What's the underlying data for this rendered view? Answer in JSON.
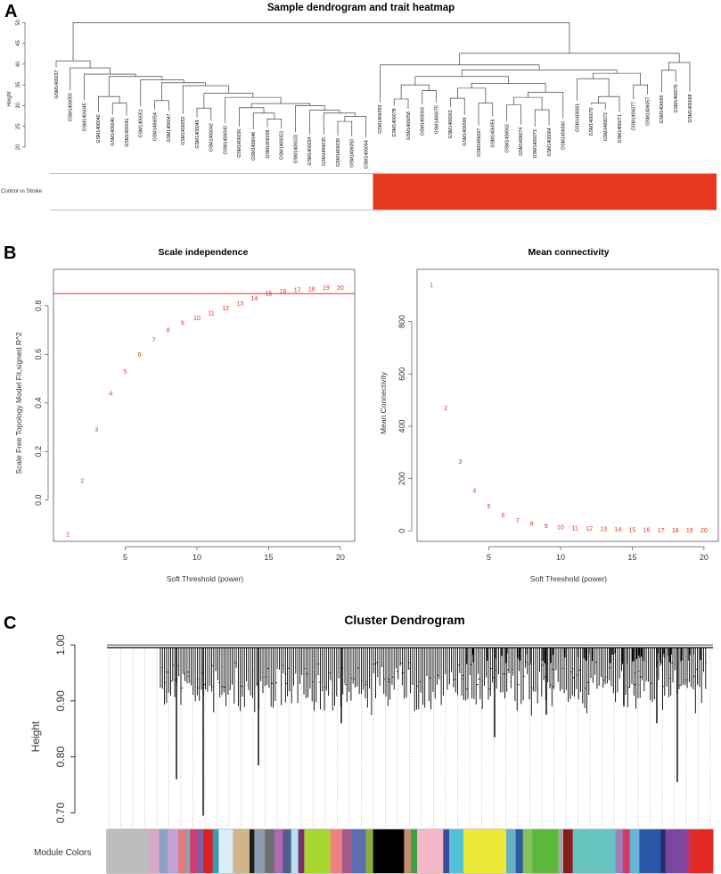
{
  "panels": {
    "a": "A",
    "b": "B",
    "c": "C"
  },
  "chart_data": [
    {
      "type": "dendrogram",
      "title": "Sample dendrogram and trait heatmap",
      "ylabel": "Height",
      "ylim": [
        20,
        52
      ],
      "yticks": [
        20,
        25,
        30,
        35,
        40,
        45,
        50
      ],
      "leaves": [
        "GSM1406037",
        "GSM1406055",
        "GSM1406045",
        "GSM1406040",
        "GSM1406046",
        "GSM1406041",
        "GSM1406051",
        "GSM1406054",
        "GSM1406047",
        "GSM1406052",
        "GSM1406049",
        "GSM1406042",
        "GSM1406043",
        "GSM1406036",
        "GSM1406048",
        "GSM1406038",
        "GSM1406053",
        "GSM1406033",
        "GSM1406034",
        "GSM1406035",
        "GSM1406039",
        "GSM1406050",
        "GSM1406044",
        "GSM1406059",
        "GSM1406078",
        "GSM1406058",
        "GSM1406066",
        "GSM1406075",
        "GSM1406063",
        "GSM1406069",
        "GSM1406067",
        "GSM1406056",
        "GSM1406062",
        "GSM1406074",
        "GSM1406073",
        "GSM1406064",
        "GSM1406060",
        "GSM1406061",
        "GSM1406070",
        "GSM1406072",
        "GSM1406071",
        "GSM1406077",
        "GSM1406057",
        "GSM1406065",
        "GSM1406076",
        "GSM1406068"
      ],
      "trait": {
        "label": "Control vs Stroke",
        "groups": [
          {
            "name": "Control",
            "count": 23,
            "color": "#ffffff"
          },
          {
            "name": "Stroke",
            "count": 23,
            "color": "#e8381e"
          }
        ]
      }
    },
    {
      "type": "scatter",
      "title": "Scale independence",
      "xlabel": "Soft Threshold (power)",
      "ylabel": "Scale Free Topology Model Fit,signed R^2",
      "xlim": [
        0,
        21
      ],
      "ylim": [
        -0.17,
        0.95
      ],
      "xticks": [
        5,
        10,
        15,
        20
      ],
      "yticks": [
        0.0,
        0.2,
        0.4,
        0.6,
        0.8
      ],
      "x": [
        1,
        2,
        3,
        4,
        5,
        6,
        7,
        8,
        9,
        10,
        11,
        12,
        13,
        14,
        15,
        16,
        17,
        18,
        19,
        20
      ],
      "y": [
        -0.14,
        0.08,
        0.29,
        0.44,
        0.53,
        0.6,
        0.66,
        0.7,
        0.73,
        0.75,
        0.77,
        0.79,
        0.81,
        0.83,
        0.85,
        0.86,
        0.865,
        0.87,
        0.875,
        0.875
      ],
      "hline": 0.85,
      "marker_color": "#e8321e"
    },
    {
      "type": "scatter",
      "title": "Mean connectivity",
      "xlabel": "Soft Threshold (power)",
      "ylabel": "Mean Connectivity",
      "xlim": [
        0,
        21
      ],
      "ylim": [
        -40,
        1000
      ],
      "xticks": [
        5,
        10,
        15,
        20
      ],
      "yticks": [
        0,
        200,
        400,
        600,
        800
      ],
      "x": [
        1,
        2,
        3,
        4,
        5,
        6,
        7,
        8,
        9,
        10,
        11,
        12,
        13,
        14,
        15,
        16,
        17,
        18,
        19,
        20
      ],
      "y": [
        940,
        470,
        265,
        155,
        95,
        60,
        40,
        28,
        20,
        15,
        12,
        10,
        8,
        6,
        5,
        4,
        3,
        3,
        2,
        2
      ],
      "marker_color": "#e8321e"
    },
    {
      "type": "dendrogram",
      "title": "Cluster Dendrogram",
      "ylabel": "Height",
      "ylim": [
        0.68,
        1.005
      ],
      "yticks": [
        0.7,
        0.8,
        0.9,
        1.0
      ],
      "ytick_labels": [
        "0.70",
        "0.80",
        "0.90",
        "1.00"
      ],
      "color_bar_label": "Module Colors",
      "module_colors": [
        {
          "color": "#bdbdbd",
          "weight": 36
        },
        {
          "color": "#d7a9c7",
          "weight": 8
        },
        {
          "color": "#8ca0c8",
          "weight": 7
        },
        {
          "color": "#c4a2d6",
          "weight": 9
        },
        {
          "color": "#e07a7a",
          "weight": 6
        },
        {
          "color": "#9aa0a4",
          "weight": 4
        },
        {
          "color": "#d03b7a",
          "weight": 6
        },
        {
          "color": "#7b5ea6",
          "weight": 5
        },
        {
          "color": "#da2020",
          "weight": 8
        },
        {
          "color": "#3a9ab3",
          "weight": 5
        },
        {
          "color": "#dbeef6",
          "weight": 12
        },
        {
          "color": "#d2b48c",
          "weight": 14
        },
        {
          "color": "#1c1c1c",
          "weight": 4
        },
        {
          "color": "#8b9bb0",
          "weight": 9
        },
        {
          "color": "#6e6e6e",
          "weight": 8
        },
        {
          "color": "#b06ab4",
          "weight": 7
        },
        {
          "color": "#505f8a",
          "weight": 7
        },
        {
          "color": "#b6e0f0",
          "weight": 6
        },
        {
          "color": "#7b2f6b",
          "weight": 5
        },
        {
          "color": "#a7d630",
          "weight": 22
        },
        {
          "color": "#f08080",
          "weight": 10
        },
        {
          "color": "#a35a88",
          "weight": 8
        },
        {
          "color": "#5c6db0",
          "weight": 12
        },
        {
          "color": "#8ab03a",
          "weight": 6
        },
        {
          "color": "#000000",
          "weight": 26
        },
        {
          "color": "#c08e6e",
          "weight": 6
        },
        {
          "color": "#3d9e3d",
          "weight": 5
        },
        {
          "color": "#f5b8c8",
          "weight": 22
        },
        {
          "color": "#3a4ea0",
          "weight": 5
        },
        {
          "color": "#4fc2d8",
          "weight": 12
        },
        {
          "color": "#ece836",
          "weight": 36
        },
        {
          "color": "#64b2c4",
          "weight": 8
        },
        {
          "color": "#2c5a9a",
          "weight": 6
        },
        {
          "color": "#84c25a",
          "weight": 8
        },
        {
          "color": "#5cb83a",
          "weight": 22
        },
        {
          "color": "#a8a8a8",
          "weight": 4
        },
        {
          "color": "#8a1c1c",
          "weight": 8
        },
        {
          "color": "#66c3c0",
          "weight": 36
        },
        {
          "color": "#9e80bc",
          "weight": 6
        },
        {
          "color": "#d03b6a",
          "weight": 6
        },
        {
          "color": "#68b4d4",
          "weight": 8
        },
        {
          "color": "#2a57a8",
          "weight": 18
        },
        {
          "color": "#20306e",
          "weight": 4
        },
        {
          "color": "#7a48a0",
          "weight": 18
        },
        {
          "color": "#c43060",
          "weight": 4
        },
        {
          "color": "#e32a22",
          "weight": 18
        }
      ]
    }
  ]
}
